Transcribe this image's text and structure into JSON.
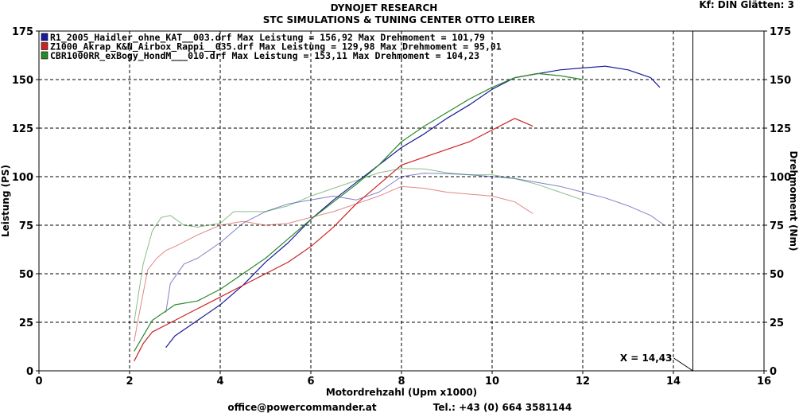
{
  "header": {
    "title": "DYNOJET RESEARCH",
    "subtitle": "STC SIMULATIONS & TUNING CENTER OTTO LEIRER",
    "settings": "Kf: DIN  Glätten: 3"
  },
  "footer": {
    "email": "office@powercommander.at",
    "phone": "Tel.: +43 (0) 664 3581144"
  },
  "chart_data": {
    "type": "line",
    "xlabel": "Motordrehzahl (Upm x1000)",
    "ylabel": "Leistung (PS)",
    "y2label": "Drehmoment (Nm)",
    "xlim": [
      0,
      16
    ],
    "ylim": [
      0,
      175
    ],
    "y2lim": [
      0,
      175
    ],
    "xticks": [
      "0",
      "2",
      "4",
      "6",
      "8",
      "10",
      "12",
      "14",
      "16"
    ],
    "yticks": [
      "0",
      "25",
      "50",
      "75",
      "100",
      "125",
      "150",
      "175"
    ],
    "y2ticks": [
      "0",
      "25",
      "50",
      "75",
      "100",
      "125",
      "150",
      "175"
    ],
    "grid": true,
    "legend_position": "top-left",
    "cursor": {
      "x": 14.43,
      "label": "X = 14,43"
    },
    "series": [
      {
        "name": "R1_2005_Haidler_ohne_KAT__003.drf Max Leistung = 156,92    Max Drehmoment = 101,79",
        "color": "#1a1a9a",
        "power": [
          [
            2.8,
            12
          ],
          [
            3.0,
            18
          ],
          [
            3.5,
            26
          ],
          [
            4.0,
            34
          ],
          [
            4.5,
            44
          ],
          [
            5.0,
            56
          ],
          [
            5.5,
            66
          ],
          [
            6.0,
            78
          ],
          [
            6.5,
            88
          ],
          [
            7.0,
            97
          ],
          [
            7.5,
            106
          ],
          [
            8.0,
            115
          ],
          [
            8.5,
            122
          ],
          [
            9.0,
            130
          ],
          [
            9.5,
            137
          ],
          [
            10.0,
            145
          ],
          [
            10.5,
            151
          ],
          [
            11.0,
            153
          ],
          [
            11.5,
            155
          ],
          [
            12.0,
            156
          ],
          [
            12.5,
            156.9
          ],
          [
            13.0,
            155
          ],
          [
            13.5,
            151
          ],
          [
            13.7,
            146
          ]
        ],
        "torque": [
          [
            2.8,
            30
          ],
          [
            2.9,
            45
          ],
          [
            3.2,
            55
          ],
          [
            3.5,
            58
          ],
          [
            4.0,
            66
          ],
          [
            4.5,
            76
          ],
          [
            5.0,
            82
          ],
          [
            5.5,
            86
          ],
          [
            6.0,
            88
          ],
          [
            6.5,
            90
          ],
          [
            7.0,
            88
          ],
          [
            7.5,
            92
          ],
          [
            8.0,
            100
          ],
          [
            8.5,
            101.8
          ],
          [
            9.0,
            101.5
          ],
          [
            9.5,
            101
          ],
          [
            10.0,
            100
          ],
          [
            10.5,
            99
          ],
          [
            11.0,
            97
          ],
          [
            11.5,
            95
          ],
          [
            12.0,
            92
          ],
          [
            12.5,
            89
          ],
          [
            13.0,
            85
          ],
          [
            13.5,
            80
          ],
          [
            13.8,
            75
          ]
        ]
      },
      {
        "name": "Z1000_Akrap_K&N_Airbox_Rappi__035.drf Max Leistung = 129,98   Max Drehmoment = 95,01",
        "color": "#cc2222",
        "power": [
          [
            2.1,
            5
          ],
          [
            2.3,
            14
          ],
          [
            2.5,
            20
          ],
          [
            3.0,
            26
          ],
          [
            3.5,
            32
          ],
          [
            4.0,
            38
          ],
          [
            4.5,
            44
          ],
          [
            5.0,
            50
          ],
          [
            5.5,
            56
          ],
          [
            6.0,
            64
          ],
          [
            6.5,
            74
          ],
          [
            7.0,
            86
          ],
          [
            7.5,
            96
          ],
          [
            8.0,
            106
          ],
          [
            8.5,
            110
          ],
          [
            9.0,
            114
          ],
          [
            9.5,
            118
          ],
          [
            10.0,
            124
          ],
          [
            10.5,
            129.98
          ],
          [
            10.9,
            126
          ]
        ],
        "torque": [
          [
            2.1,
            15
          ],
          [
            2.2,
            28
          ],
          [
            2.4,
            52
          ],
          [
            2.6,
            58
          ],
          [
            2.8,
            62
          ],
          [
            3.0,
            64
          ],
          [
            3.5,
            70
          ],
          [
            4.0,
            75
          ],
          [
            4.5,
            77
          ],
          [
            5.0,
            75
          ],
          [
            5.5,
            76
          ],
          [
            6.0,
            79
          ],
          [
            6.5,
            82
          ],
          [
            7.0,
            86
          ],
          [
            7.5,
            90
          ],
          [
            8.0,
            95
          ],
          [
            8.5,
            94
          ],
          [
            9.0,
            92
          ],
          [
            9.5,
            91
          ],
          [
            10.0,
            90
          ],
          [
            10.5,
            87
          ],
          [
            10.9,
            81
          ]
        ]
      },
      {
        "name": "CBR1000RR_exBogy_HondM___010.drf Max Leistung = 153,11   Max Drehmoment = 104,23",
        "color": "#2a8a2a",
        "power": [
          [
            2.1,
            10
          ],
          [
            2.3,
            18
          ],
          [
            2.5,
            26
          ],
          [
            3.0,
            34
          ],
          [
            3.5,
            36
          ],
          [
            4.0,
            42
          ],
          [
            4.5,
            50
          ],
          [
            5.0,
            58
          ],
          [
            5.5,
            68
          ],
          [
            6.0,
            78
          ],
          [
            6.5,
            87
          ],
          [
            7.0,
            96
          ],
          [
            7.5,
            106
          ],
          [
            8.0,
            118
          ],
          [
            8.5,
            126
          ],
          [
            9.0,
            133
          ],
          [
            9.5,
            140
          ],
          [
            10.0,
            146
          ],
          [
            10.5,
            151
          ],
          [
            11.0,
            153.1
          ],
          [
            11.5,
            152
          ],
          [
            12.0,
            150
          ]
        ],
        "torque": [
          [
            2.1,
            25
          ],
          [
            2.3,
            55
          ],
          [
            2.5,
            72
          ],
          [
            2.7,
            79
          ],
          [
            2.9,
            80
          ],
          [
            3.2,
            75
          ],
          [
            3.5,
            74
          ],
          [
            4.0,
            76
          ],
          [
            4.3,
            82
          ],
          [
            4.5,
            82
          ],
          [
            5.0,
            82
          ],
          [
            5.5,
            85
          ],
          [
            6.0,
            90
          ],
          [
            6.5,
            94
          ],
          [
            7.0,
            98
          ],
          [
            7.5,
            102
          ],
          [
            8.0,
            104.2
          ],
          [
            8.5,
            104
          ],
          [
            9.0,
            102
          ],
          [
            9.5,
            101
          ],
          [
            10.0,
            101
          ],
          [
            10.5,
            99
          ],
          [
            11.0,
            96
          ],
          [
            11.5,
            92
          ],
          [
            12.0,
            88
          ]
        ]
      }
    ]
  }
}
